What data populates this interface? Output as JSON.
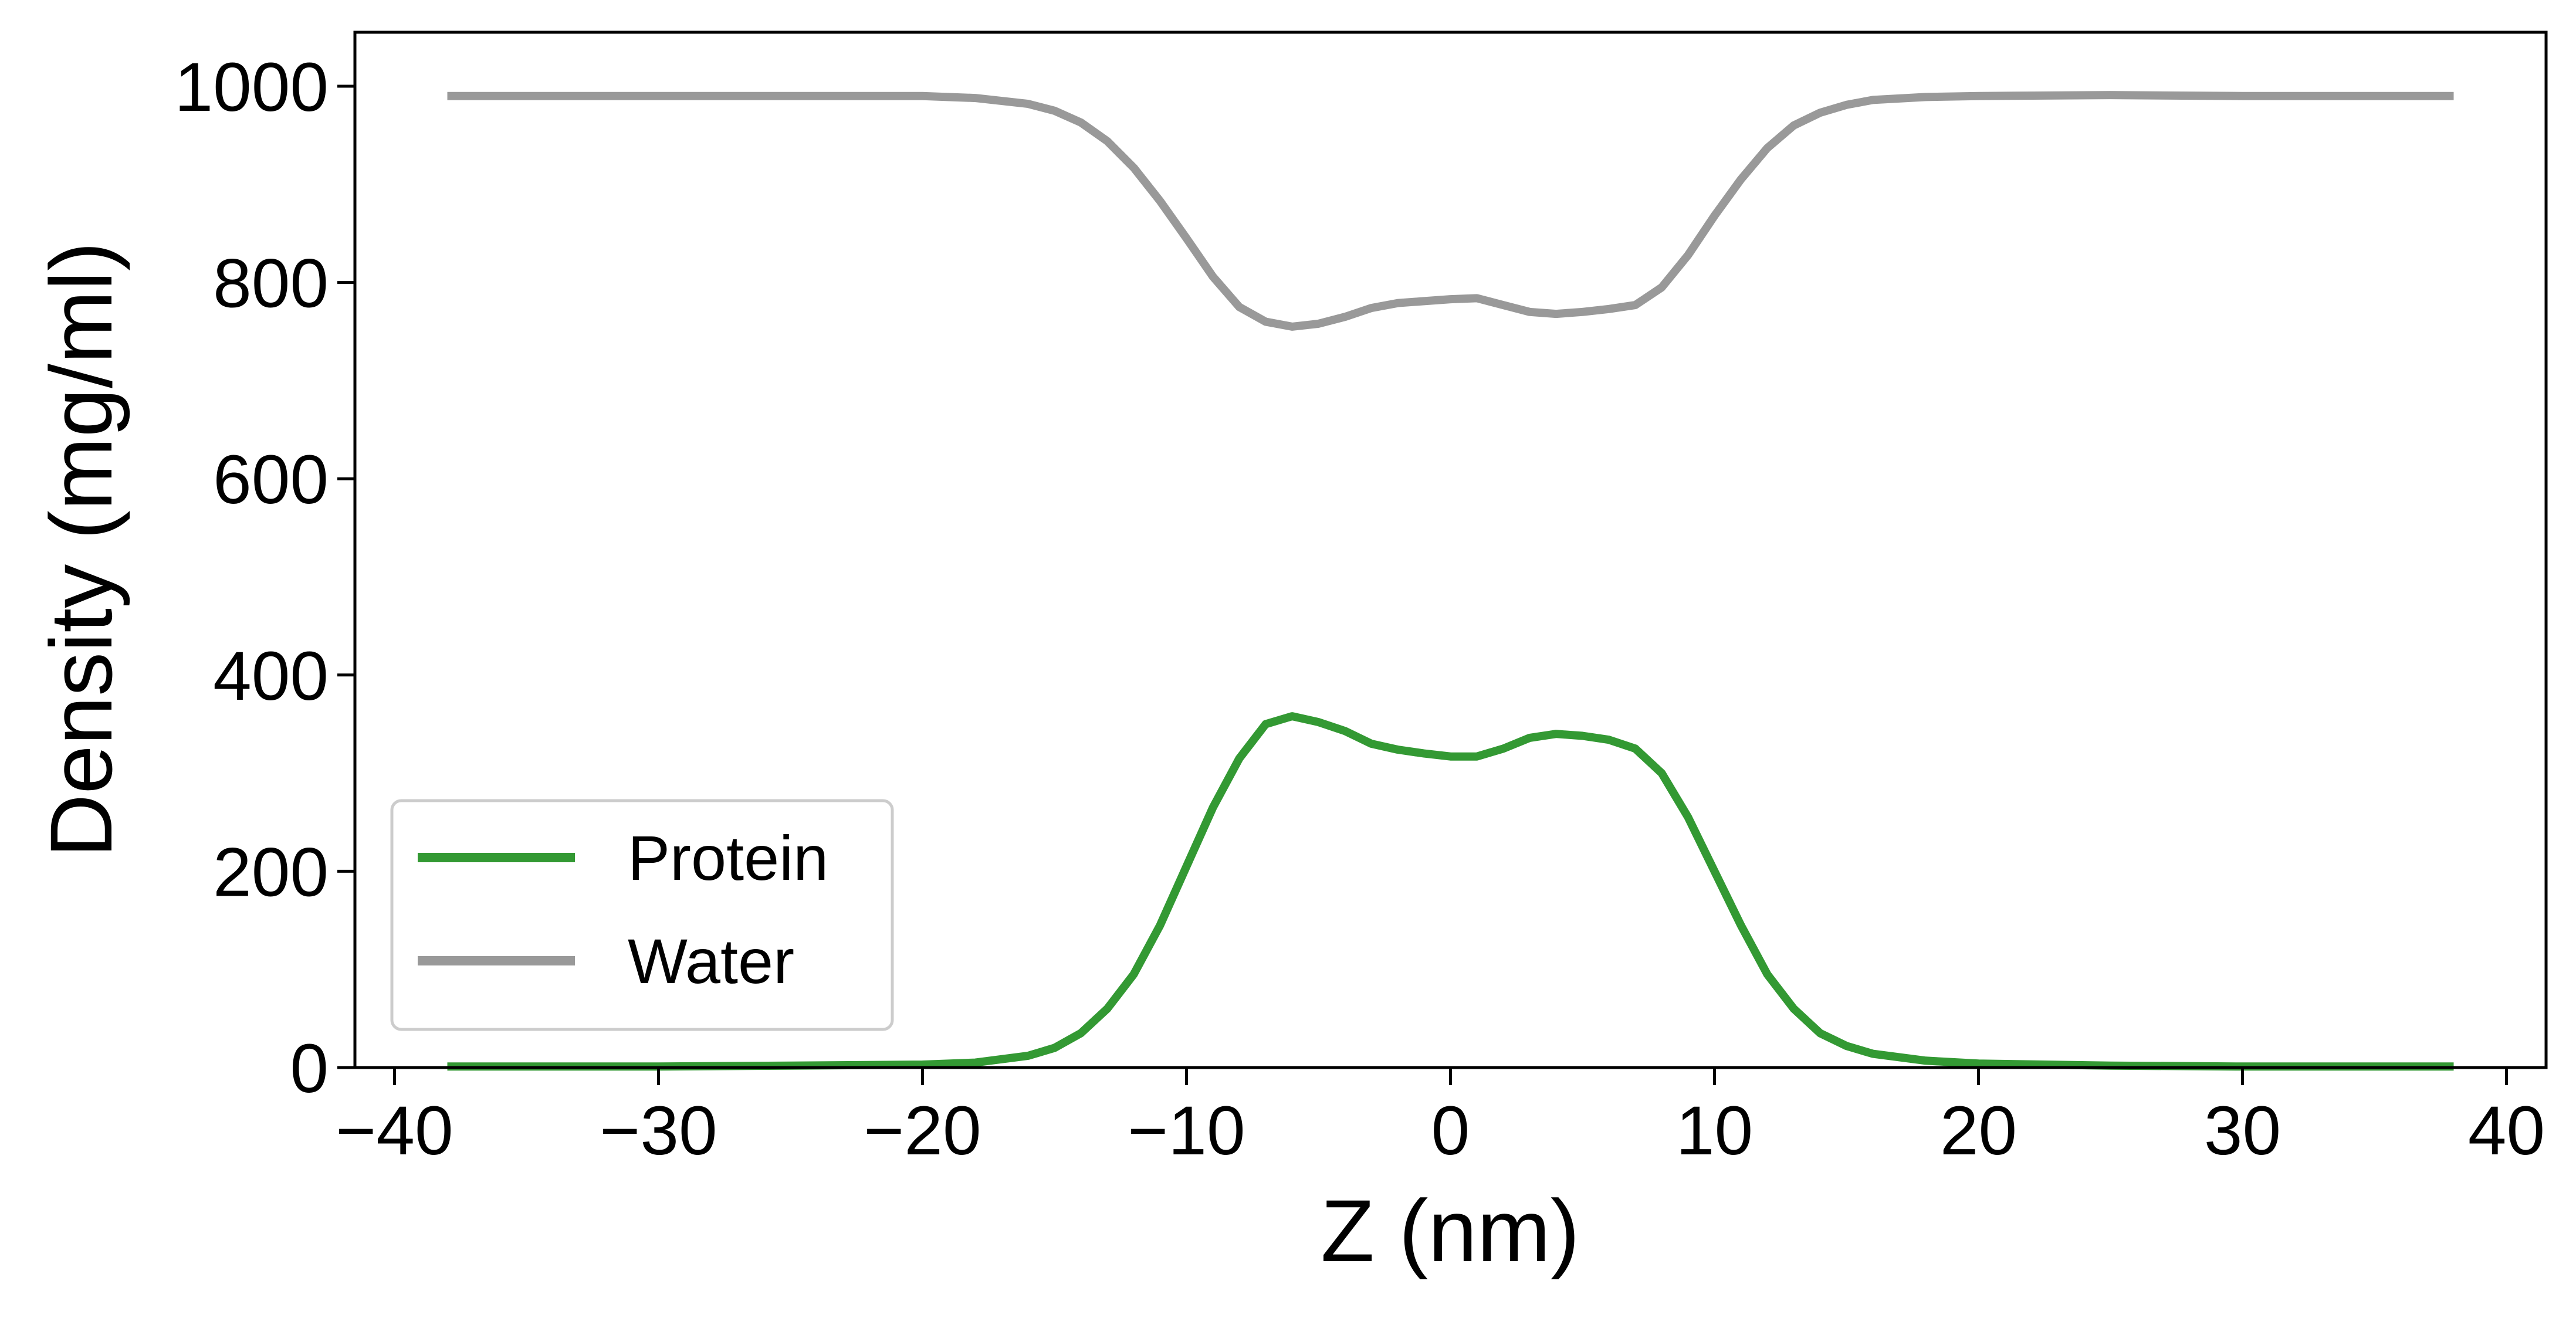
{
  "chart_data": {
    "type": "line",
    "title": "",
    "xlabel": "Z (nm)",
    "ylabel": "Density (mg/ml)",
    "xlim": [
      -41.5,
      41.5
    ],
    "ylim": [
      0,
      1055
    ],
    "xticks": [
      -40,
      -30,
      -20,
      -10,
      0,
      10,
      20,
      30,
      40
    ],
    "xtick_labels": [
      "−40",
      "−30",
      "−20",
      "−10",
      "0",
      "10",
      "20",
      "30",
      "40"
    ],
    "yticks": [
      0,
      200,
      400,
      600,
      800,
      1000
    ],
    "ytick_labels": [
      "0",
      "200",
      "400",
      "600",
      "800",
      "1000"
    ],
    "grid": false,
    "legend_position": "lower-left",
    "series": [
      {
        "name": "Protein",
        "color": "#339933",
        "points": [
          [
            -38,
            1
          ],
          [
            -30,
            1
          ],
          [
            -25,
            2
          ],
          [
            -20,
            3
          ],
          [
            -18,
            5
          ],
          [
            -16,
            12
          ],
          [
            -15,
            20
          ],
          [
            -14,
            35
          ],
          [
            -13,
            60
          ],
          [
            -12,
            95
          ],
          [
            -11,
            145
          ],
          [
            -10,
            205
          ],
          [
            -9,
            265
          ],
          [
            -8,
            315
          ],
          [
            -7,
            350
          ],
          [
            -6,
            358
          ],
          [
            -5,
            352
          ],
          [
            -4,
            343
          ],
          [
            -3,
            330
          ],
          [
            -2,
            324
          ],
          [
            -1,
            320
          ],
          [
            0,
            317
          ],
          [
            1,
            317
          ],
          [
            2,
            325
          ],
          [
            3,
            336
          ],
          [
            4,
            340
          ],
          [
            5,
            338
          ],
          [
            6,
            334
          ],
          [
            7,
            325
          ],
          [
            8,
            300
          ],
          [
            9,
            255
          ],
          [
            10,
            200
          ],
          [
            11,
            145
          ],
          [
            12,
            95
          ],
          [
            13,
            60
          ],
          [
            14,
            35
          ],
          [
            15,
            22
          ],
          [
            16,
            14
          ],
          [
            18,
            7
          ],
          [
            20,
            4
          ],
          [
            25,
            2
          ],
          [
            30,
            1
          ],
          [
            38,
            1
          ]
        ]
      },
      {
        "name": "Water",
        "color": "#999999",
        "points": [
          [
            -38,
            990
          ],
          [
            -30,
            990
          ],
          [
            -22,
            990
          ],
          [
            -20,
            990
          ],
          [
            -18,
            988
          ],
          [
            -16,
            982
          ],
          [
            -15,
            975
          ],
          [
            -14,
            963
          ],
          [
            -13,
            944
          ],
          [
            -12,
            917
          ],
          [
            -11,
            883
          ],
          [
            -10,
            845
          ],
          [
            -9,
            806
          ],
          [
            -8,
            775
          ],
          [
            -7,
            760
          ],
          [
            -6,
            755
          ],
          [
            -5,
            758
          ],
          [
            -4,
            765
          ],
          [
            -3,
            774
          ],
          [
            -2,
            779
          ],
          [
            -1,
            781
          ],
          [
            0,
            783
          ],
          [
            1,
            784
          ],
          [
            2,
            777
          ],
          [
            3,
            770
          ],
          [
            4,
            768
          ],
          [
            5,
            770
          ],
          [
            6,
            773
          ],
          [
            7,
            777
          ],
          [
            8,
            795
          ],
          [
            9,
            828
          ],
          [
            10,
            868
          ],
          [
            11,
            905
          ],
          [
            12,
            937
          ],
          [
            13,
            960
          ],
          [
            14,
            973
          ],
          [
            15,
            981
          ],
          [
            16,
            986
          ],
          [
            18,
            989
          ],
          [
            20,
            990
          ],
          [
            25,
            991
          ],
          [
            30,
            990
          ],
          [
            38,
            990
          ]
        ]
      }
    ]
  }
}
